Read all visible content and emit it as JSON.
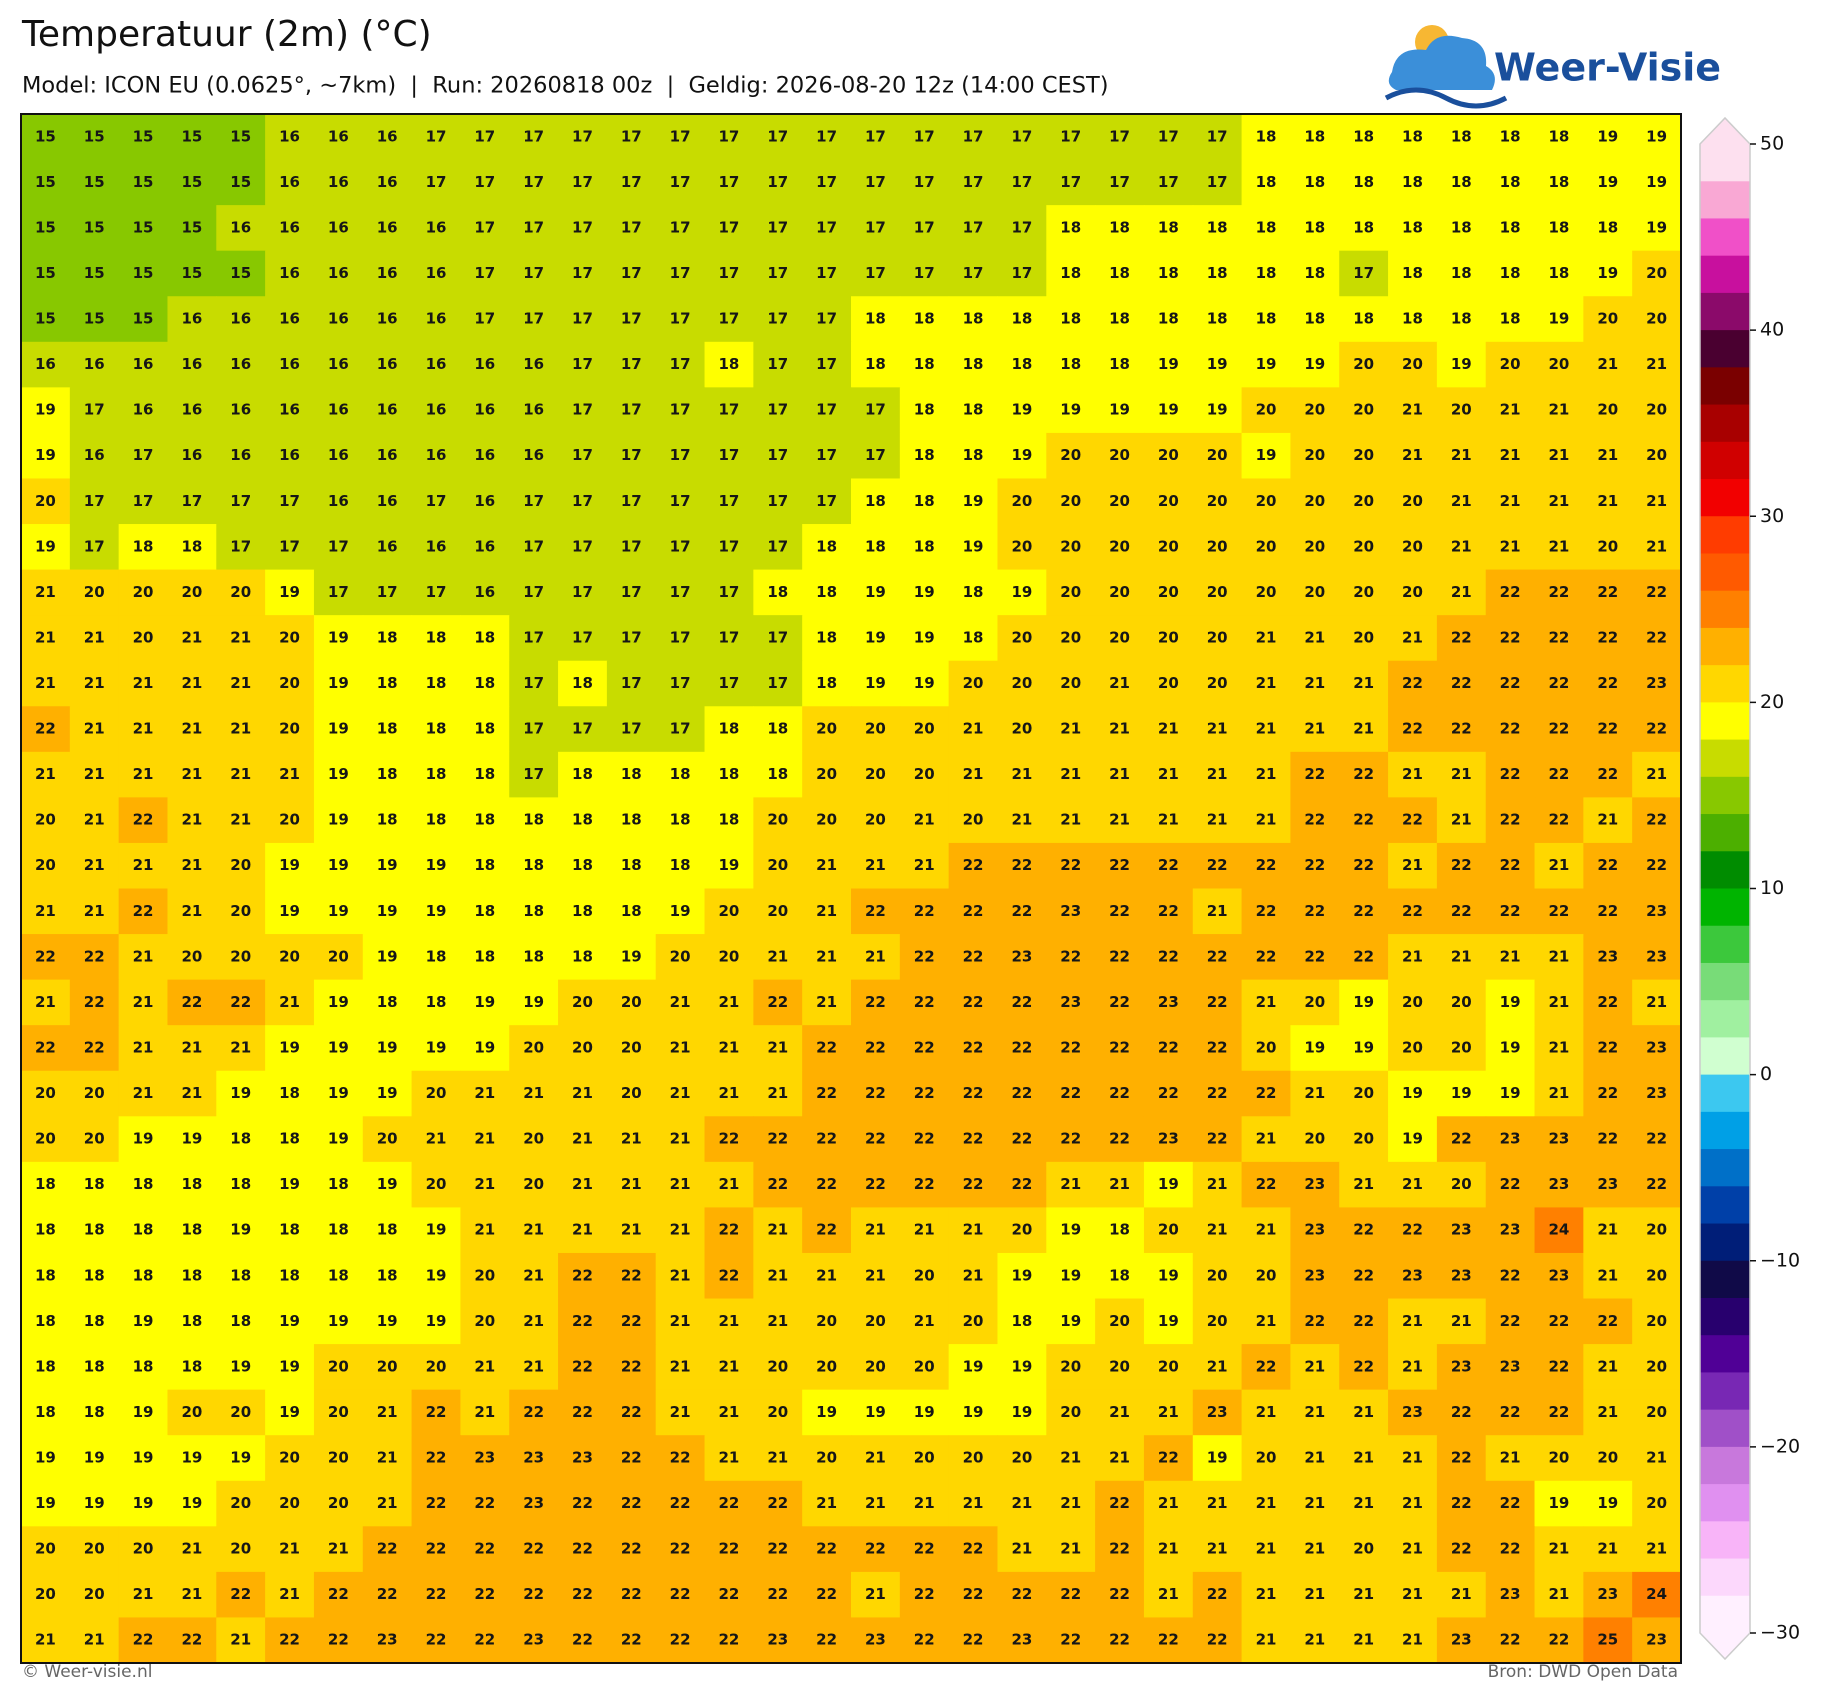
{
  "header": {
    "title": "Temperatuur (2m) (°C)",
    "subtitle": "Model: ICON EU (0.0625°, ~7km)  |  Run: 20260818 00z  |  Geldig: 2026-08-20 12z (14:00 CEST)",
    "logo": "Weer-Visie"
  },
  "footer": {
    "left": "© Weer-visie.nl",
    "right": "Bron: DWD Open Data"
  },
  "colorbar": {
    "min": -30,
    "max": 50,
    "colors": [
      "#fde0ef",
      "#f9a8d4",
      "#f050c8",
      "#c8109e",
      "#8b0a6a",
      "#4a0030",
      "#7a0000",
      "#a80000",
      "#d00000",
      "#f20000",
      "#ff3c00",
      "#ff5a00",
      "#ff8000",
      "#ffb000",
      "#ffd700",
      "#ffff00",
      "#c8dc00",
      "#88c800",
      "#4caf00",
      "#008c00",
      "#00b400",
      "#3cc83c",
      "#78dc78",
      "#a0f0a0",
      "#d0ffd0",
      "#3cc8f0",
      "#00a0e6",
      "#0070c8",
      "#0040a8",
      "#001e78",
      "#100a48",
      "#28006e",
      "#500096",
      "#7828b4",
      "#a050c8",
      "#c878dc",
      "#e090f0",
      "#f8b4f8",
      "#fcd8fc",
      "#fff0ff"
    ],
    "ticks": [
      50,
      40,
      30,
      20,
      10,
      0,
      {
        "value": -10,
        "label": "−10"
      },
      {
        "value": -20,
        "label": "−20"
      },
      {
        "value": -30,
        "label": "−30"
      }
    ]
  },
  "grid": {
    "rows": [
      [
        15,
        15,
        15,
        15,
        15,
        16,
        16,
        16,
        17,
        17,
        17,
        17,
        17,
        17,
        17,
        17,
        17,
        17,
        17,
        17,
        17,
        17,
        17,
        17,
        17,
        18,
        18,
        18,
        18,
        18,
        18,
        18,
        19,
        19
      ],
      [
        15,
        15,
        15,
        15,
        15,
        16,
        16,
        16,
        17,
        17,
        17,
        17,
        17,
        17,
        17,
        17,
        17,
        17,
        17,
        17,
        17,
        17,
        17,
        17,
        17,
        18,
        18,
        18,
        18,
        18,
        18,
        18,
        19,
        19
      ],
      [
        15,
        15,
        15,
        15,
        16,
        16,
        16,
        16,
        16,
        17,
        17,
        17,
        17,
        17,
        17,
        17,
        17,
        17,
        17,
        17,
        17,
        18,
        18,
        18,
        18,
        18,
        18,
        18,
        18,
        18,
        18,
        18,
        18,
        19
      ],
      [
        15,
        15,
        15,
        15,
        15,
        16,
        16,
        16,
        16,
        17,
        17,
        17,
        17,
        17,
        17,
        17,
        17,
        17,
        17,
        17,
        17,
        18,
        18,
        18,
        18,
        18,
        18,
        17,
        18,
        18,
        18,
        18,
        19,
        20
      ],
      [
        15,
        15,
        15,
        16,
        16,
        16,
        16,
        16,
        16,
        17,
        17,
        17,
        17,
        17,
        17,
        17,
        17,
        18,
        18,
        18,
        18,
        18,
        18,
        18,
        18,
        18,
        18,
        18,
        18,
        18,
        18,
        19,
        20,
        20
      ],
      [
        16,
        16,
        16,
        16,
        16,
        16,
        16,
        16,
        16,
        16,
        16,
        17,
        17,
        17,
        18,
        17,
        17,
        18,
        18,
        18,
        18,
        18,
        18,
        19,
        19,
        19,
        19,
        20,
        20,
        19,
        20,
        20,
        21,
        21
      ],
      [
        19,
        17,
        16,
        16,
        16,
        16,
        16,
        16,
        16,
        16,
        16,
        17,
        17,
        17,
        17,
        17,
        17,
        17,
        18,
        18,
        19,
        19,
        19,
        19,
        19,
        20,
        20,
        20,
        21,
        20,
        21,
        21,
        20,
        20
      ],
      [
        19,
        16,
        17,
        16,
        16,
        16,
        16,
        16,
        16,
        16,
        16,
        17,
        17,
        17,
        17,
        17,
        17,
        17,
        18,
        18,
        19,
        20,
        20,
        20,
        20,
        19,
        20,
        20,
        21,
        21,
        21,
        21,
        21,
        20
      ],
      [
        20,
        17,
        17,
        17,
        17,
        17,
        16,
        16,
        17,
        16,
        17,
        17,
        17,
        17,
        17,
        17,
        17,
        18,
        18,
        19,
        20,
        20,
        20,
        20,
        20,
        20,
        20,
        20,
        20,
        21,
        21,
        21,
        21,
        21
      ],
      [
        19,
        17,
        18,
        18,
        17,
        17,
        17,
        16,
        16,
        16,
        17,
        17,
        17,
        17,
        17,
        17,
        18,
        18,
        18,
        19,
        20,
        20,
        20,
        20,
        20,
        20,
        20,
        20,
        20,
        21,
        21,
        21,
        20,
        21
      ],
      [
        21,
        20,
        20,
        20,
        20,
        19,
        17,
        17,
        17,
        16,
        17,
        17,
        17,
        17,
        17,
        18,
        18,
        19,
        19,
        18,
        19,
        20,
        20,
        20,
        20,
        20,
        20,
        20,
        20,
        21,
        22,
        22,
        22,
        22
      ],
      [
        21,
        21,
        20,
        21,
        21,
        20,
        19,
        18,
        18,
        18,
        17,
        17,
        17,
        17,
        17,
        17,
        18,
        19,
        19,
        18,
        20,
        20,
        20,
        20,
        20,
        21,
        21,
        20,
        21,
        22,
        22,
        22,
        22,
        22
      ],
      [
        21,
        21,
        21,
        21,
        21,
        20,
        19,
        18,
        18,
        18,
        17,
        18,
        17,
        17,
        17,
        17,
        18,
        19,
        19,
        20,
        20,
        20,
        21,
        20,
        20,
        21,
        21,
        21,
        22,
        22,
        22,
        22,
        22,
        23
      ],
      [
        22,
        21,
        21,
        21,
        21,
        20,
        19,
        18,
        18,
        18,
        17,
        17,
        17,
        17,
        18,
        18,
        20,
        20,
        20,
        21,
        20,
        21,
        21,
        21,
        21,
        21,
        21,
        21,
        22,
        22,
        22,
        22,
        22,
        22
      ],
      [
        21,
        21,
        21,
        21,
        21,
        21,
        19,
        18,
        18,
        18,
        17,
        18,
        18,
        18,
        18,
        18,
        20,
        20,
        20,
        21,
        21,
        21,
        21,
        21,
        21,
        21,
        22,
        22,
        21,
        21,
        22,
        22,
        22,
        21
      ],
      [
        20,
        21,
        22,
        21,
        21,
        20,
        19,
        18,
        18,
        18,
        18,
        18,
        18,
        18,
        18,
        20,
        20,
        20,
        21,
        20,
        21,
        21,
        21,
        21,
        21,
        21,
        22,
        22,
        22,
        21,
        22,
        22,
        21,
        22
      ],
      [
        20,
        21,
        21,
        21,
        20,
        19,
        19,
        19,
        19,
        18,
        18,
        18,
        18,
        18,
        19,
        20,
        21,
        21,
        21,
        22,
        22,
        22,
        22,
        22,
        22,
        22,
        22,
        22,
        21,
        22,
        22,
        21,
        22,
        22
      ],
      [
        21,
        21,
        22,
        21,
        20,
        19,
        19,
        19,
        19,
        18,
        18,
        18,
        18,
        19,
        20,
        20,
        21,
        22,
        22,
        22,
        22,
        23,
        22,
        22,
        21,
        22,
        22,
        22,
        22,
        22,
        22,
        22,
        22,
        23
      ],
      [
        22,
        22,
        21,
        20,
        20,
        20,
        20,
        19,
        18,
        18,
        18,
        18,
        19,
        20,
        20,
        21,
        21,
        21,
        22,
        22,
        23,
        22,
        22,
        22,
        22,
        22,
        22,
        22,
        21,
        21,
        21,
        21,
        23,
        23
      ],
      [
        21,
        22,
        21,
        22,
        22,
        21,
        19,
        18,
        18,
        19,
        19,
        20,
        20,
        21,
        21,
        22,
        21,
        22,
        22,
        22,
        22,
        23,
        22,
        23,
        22,
        21,
        20,
        19,
        20,
        20,
        19,
        21,
        22,
        21
      ],
      [
        22,
        22,
        21,
        21,
        21,
        19,
        19,
        19,
        19,
        19,
        20,
        20,
        20,
        21,
        21,
        21,
        22,
        22,
        22,
        22,
        22,
        22,
        22,
        22,
        22,
        20,
        19,
        19,
        20,
        20,
        19,
        21,
        22,
        23
      ],
      [
        20,
        20,
        21,
        21,
        19,
        18,
        19,
        19,
        20,
        21,
        21,
        21,
        20,
        21,
        21,
        21,
        22,
        22,
        22,
        22,
        22,
        22,
        22,
        22,
        22,
        22,
        21,
        20,
        19,
        19,
        19,
        21,
        22,
        23
      ],
      [
        20,
        20,
        19,
        19,
        18,
        18,
        19,
        20,
        21,
        21,
        20,
        21,
        21,
        21,
        22,
        22,
        22,
        22,
        22,
        22,
        22,
        22,
        22,
        23,
        22,
        21,
        20,
        20,
        19,
        22,
        23,
        23,
        22,
        22
      ],
      [
        18,
        18,
        18,
        18,
        18,
        19,
        18,
        19,
        20,
        21,
        20,
        21,
        21,
        21,
        21,
        22,
        22,
        22,
        22,
        22,
        22,
        21,
        21,
        19,
        21,
        22,
        23,
        21,
        21,
        20,
        22,
        23,
        23,
        22
      ],
      [
        18,
        18,
        18,
        18,
        19,
        18,
        18,
        18,
        19,
        21,
        21,
        21,
        21,
        21,
        22,
        21,
        22,
        21,
        21,
        21,
        20,
        19,
        18,
        20,
        21,
        21,
        23,
        22,
        22,
        23,
        23,
        24,
        21,
        20
      ],
      [
        18,
        18,
        18,
        18,
        18,
        18,
        18,
        18,
        19,
        20,
        21,
        22,
        22,
        21,
        22,
        21,
        21,
        21,
        20,
        21,
        19,
        19,
        18,
        19,
        20,
        20,
        23,
        22,
        23,
        23,
        22,
        23,
        21,
        20
      ],
      [
        18,
        18,
        19,
        18,
        18,
        19,
        19,
        19,
        19,
        20,
        21,
        22,
        22,
        21,
        21,
        21,
        20,
        20,
        21,
        20,
        18,
        19,
        20,
        19,
        20,
        21,
        22,
        22,
        21,
        21,
        22,
        22,
        22,
        20
      ],
      [
        18,
        18,
        18,
        18,
        19,
        19,
        20,
        20,
        20,
        21,
        21,
        22,
        22,
        21,
        21,
        20,
        20,
        20,
        20,
        19,
        19,
        20,
        20,
        20,
        21,
        22,
        21,
        22,
        21,
        23,
        23,
        22,
        21,
        20
      ],
      [
        18,
        18,
        19,
        20,
        20,
        19,
        20,
        21,
        22,
        21,
        22,
        22,
        22,
        21,
        21,
        20,
        19,
        19,
        19,
        19,
        19,
        20,
        21,
        21,
        23,
        21,
        21,
        21,
        23,
        22,
        22,
        22,
        21,
        20
      ],
      [
        19,
        19,
        19,
        19,
        19,
        20,
        20,
        21,
        22,
        23,
        23,
        23,
        22,
        22,
        21,
        21,
        20,
        21,
        20,
        20,
        20,
        21,
        21,
        22,
        19,
        20,
        21,
        21,
        21,
        22,
        21,
        20,
        20,
        21
      ],
      [
        19,
        19,
        19,
        19,
        20,
        20,
        20,
        21,
        22,
        22,
        23,
        22,
        22,
        22,
        22,
        22,
        21,
        21,
        21,
        21,
        21,
        21,
        22,
        21,
        21,
        21,
        21,
        21,
        21,
        22,
        22,
        19,
        19,
        20
      ],
      [
        20,
        20,
        20,
        21,
        20,
        21,
        21,
        22,
        22,
        22,
        22,
        22,
        22,
        22,
        22,
        22,
        22,
        22,
        22,
        22,
        21,
        21,
        22,
        21,
        21,
        21,
        21,
        20,
        21,
        22,
        22,
        21,
        21,
        21
      ],
      [
        20,
        20,
        21,
        21,
        22,
        21,
        22,
        22,
        22,
        22,
        22,
        22,
        22,
        22,
        22,
        22,
        22,
        21,
        22,
        22,
        22,
        22,
        22,
        21,
        22,
        21,
        21,
        21,
        21,
        21,
        23,
        21,
        23,
        24
      ],
      [
        21,
        21,
        22,
        22,
        21,
        22,
        22,
        23,
        22,
        22,
        23,
        22,
        22,
        22,
        22,
        23,
        22,
        23,
        22,
        22,
        23,
        22,
        22,
        22,
        22,
        21,
        21,
        21,
        21,
        23,
        22,
        22,
        25,
        23
      ]
    ]
  }
}
